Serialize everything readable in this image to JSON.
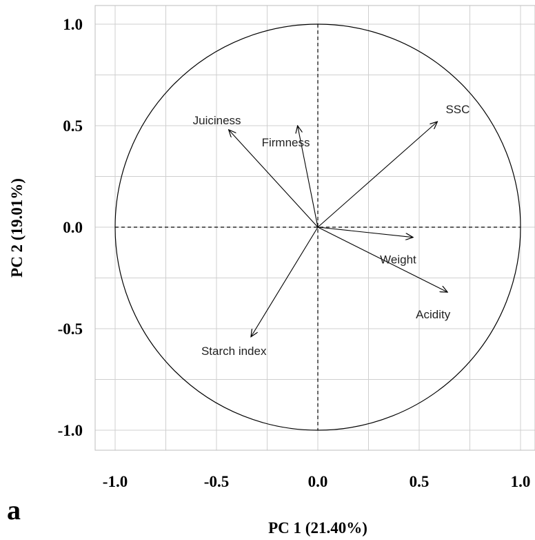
{
  "chart_data": {
    "type": "scatter",
    "subtype": "pca-correlation-circle",
    "panel_label": "a",
    "xlabel": "PC 1 (21.40%)",
    "ylabel": "PC 2 (19.01%)",
    "xlim": [
      -1.0,
      1.0
    ],
    "ylim": [
      -1.0,
      1.0
    ],
    "x_ticks": [
      "-1.0",
      "-0.5",
      "0.0",
      "0.5",
      "1.0"
    ],
    "y_ticks": [
      "1.0",
      "0.5",
      "0.0",
      "-0.5",
      "-1.0"
    ],
    "grid": true,
    "unit_circle": true,
    "vectors": [
      {
        "name": "SSC",
        "x": 0.59,
        "y": 0.52
      },
      {
        "name": "Juiciness",
        "x": -0.44,
        "y": 0.48
      },
      {
        "name": "Firmness",
        "x": -0.1,
        "y": 0.5
      },
      {
        "name": "Weight",
        "x": 0.47,
        "y": -0.05
      },
      {
        "name": "Acidity",
        "x": 0.64,
        "y": -0.32
      },
      {
        "name": "Starch index",
        "x": -0.33,
        "y": -0.54
      }
    ],
    "colors": {
      "lines": "#000000",
      "grid": "#cfcfcf",
      "labels": "#222222"
    }
  }
}
